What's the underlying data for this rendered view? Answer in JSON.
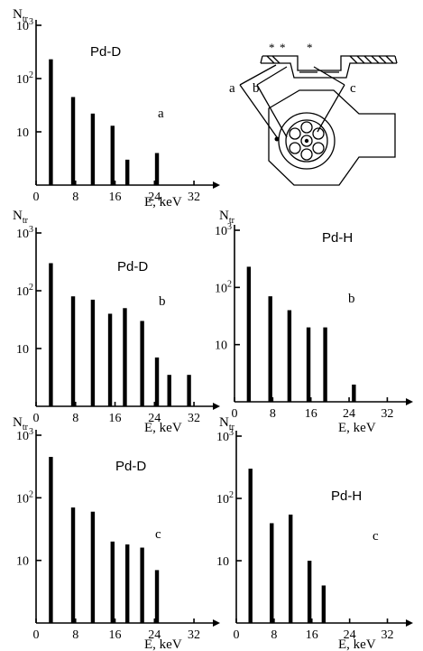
{
  "chart_data": [
    {
      "id": "a-pd-d",
      "type": "bar",
      "panel_letter": "a",
      "title": "Pd-D",
      "ylabel": "N",
      "ylabel_sub": "tr",
      "xlabel": "E, keV",
      "x_ticks": [
        "0",
        "8",
        "16",
        "24",
        "32"
      ],
      "y_ticks": [
        "10",
        "10",
        "10"
      ],
      "y_exponents": [
        "",
        "2",
        "3"
      ],
      "scale": "log",
      "ylim": [
        1,
        1000
      ],
      "xlim": [
        0,
        34
      ],
      "x": [
        3,
        7.5,
        11.5,
        15.5,
        18.5,
        24.5
      ],
      "values": [
        230,
        45,
        22,
        13,
        3,
        4
      ]
    },
    {
      "id": "b-pd-d",
      "type": "bar",
      "panel_letter": "b",
      "title": "Pd-D",
      "ylabel": "N",
      "ylabel_sub": "tr",
      "xlabel": "E, keV",
      "x_ticks": [
        "0",
        "8",
        "16",
        "24",
        "32"
      ],
      "y_ticks": [
        "10",
        "10",
        "10"
      ],
      "y_exponents": [
        "",
        "2",
        "3"
      ],
      "scale": "log",
      "ylim": [
        1,
        1000
      ],
      "xlim": [
        0,
        34
      ],
      "x": [
        3,
        7.5,
        11.5,
        15,
        18,
        21.5,
        24.5,
        27,
        31
      ],
      "values": [
        300,
        80,
        70,
        40,
        50,
        30,
        7,
        3.5,
        3.5
      ]
    },
    {
      "id": "b-pd-h",
      "type": "bar",
      "panel_letter": "b",
      "title": "Pd-H",
      "ylabel": "N",
      "ylabel_sub": "tr",
      "xlabel": "E, keV",
      "x_ticks": [
        "0",
        "8",
        "16",
        "24",
        "32"
      ],
      "y_ticks": [
        "10",
        "10",
        "10"
      ],
      "y_exponents": [
        "",
        "2",
        "3"
      ],
      "scale": "log",
      "ylim": [
        1,
        1000
      ],
      "xlim": [
        0,
        34
      ],
      "x": [
        3,
        7.5,
        11.5,
        15.5,
        19,
        25
      ],
      "values": [
        230,
        70,
        40,
        20,
        20,
        2
      ]
    },
    {
      "id": "c-pd-d",
      "type": "bar",
      "panel_letter": "c",
      "title": "Pd-D",
      "ylabel": "N",
      "ylabel_sub": "tr",
      "xlabel": "E, keV",
      "x_ticks": [
        "0",
        "8",
        "16",
        "24",
        "32"
      ],
      "y_ticks": [
        "10",
        "10",
        "10"
      ],
      "y_exponents": [
        "",
        "2",
        "3"
      ],
      "scale": "log",
      "ylim": [
        1,
        1000
      ],
      "xlim": [
        0,
        34
      ],
      "x": [
        3,
        7.5,
        11.5,
        15.5,
        18.5,
        21.5,
        24.5
      ],
      "values": [
        450,
        70,
        60,
        20,
        18,
        16,
        7
      ]
    },
    {
      "id": "c-pd-h",
      "type": "bar",
      "panel_letter": "c",
      "title": "Pd-H",
      "ylabel": "N",
      "ylabel_sub": "tr",
      "xlabel": "E, keV",
      "x_ticks": [
        "0",
        "8",
        "16",
        "24",
        "32"
      ],
      "y_ticks": [
        "10",
        "10",
        "10"
      ],
      "y_exponents": [
        "",
        "2",
        "3"
      ],
      "scale": "log",
      "ylim": [
        1,
        1000
      ],
      "xlim": [
        0,
        34
      ],
      "x": [
        3,
        7.5,
        11.5,
        15.5,
        18.5
      ],
      "values": [
        300,
        40,
        55,
        10,
        4
      ]
    }
  ],
  "diagram": {
    "labels": [
      "a",
      "b",
      "c"
    ]
  }
}
